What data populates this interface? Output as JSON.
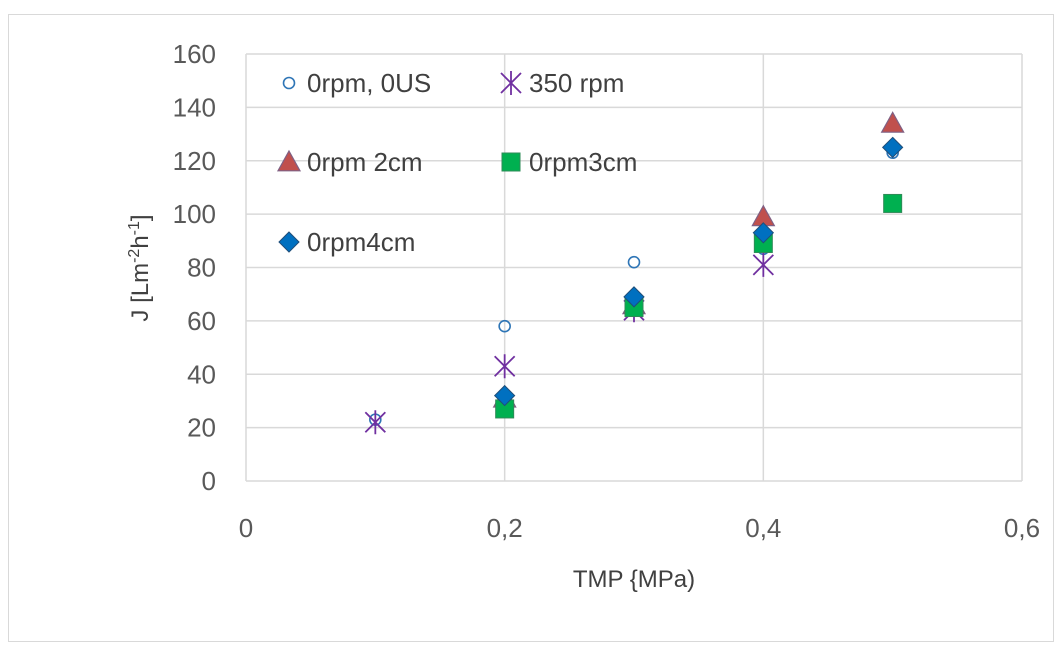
{
  "chart_data": {
    "type": "scatter",
    "xlabel": "TMP {MPa)",
    "ylabel_main": "J [Lm",
    "ylabel_sup1": "-2",
    "ylabel_mid": "h",
    "ylabel_sup2": "-1",
    "ylabel_end": "]",
    "xlim": [
      0,
      0.6
    ],
    "ylim": [
      0,
      160
    ],
    "x_ticks": [
      0,
      0.2,
      0.4,
      0.6
    ],
    "x_tick_labels": [
      "0",
      "0,2",
      "0,4",
      "0,6"
    ],
    "y_ticks": [
      0,
      20,
      40,
      60,
      80,
      100,
      120,
      140,
      160
    ],
    "y_tick_labels": [
      "0",
      "20",
      "40",
      "60",
      "80",
      "100",
      "120",
      "140",
      "160"
    ],
    "grid": true,
    "legend_position": "top-left, inside plot",
    "series": [
      {
        "name": "0rpm, 0US",
        "marker": "circle-open",
        "color": "#2e75b6",
        "points": [
          [
            0.1,
            23
          ],
          [
            0.2,
            58
          ],
          [
            0.3,
            82
          ],
          [
            0.4,
            87
          ],
          [
            0.5,
            123
          ]
        ]
      },
      {
        "name": "350 rpm",
        "marker": "star",
        "color": "#7030a0",
        "points": [
          [
            0.1,
            22
          ],
          [
            0.2,
            43
          ],
          [
            0.3,
            64
          ],
          [
            0.4,
            81
          ]
        ]
      },
      {
        "name": "0rpm 2cm",
        "marker": "triangle",
        "color": "#c0504d",
        "points": [
          [
            0.2,
            31
          ],
          [
            0.3,
            66
          ],
          [
            0.4,
            99
          ],
          [
            0.5,
            134
          ]
        ]
      },
      {
        "name": "0rpm3cm",
        "marker": "square",
        "color": "#00b050",
        "points": [
          [
            0.2,
            27
          ],
          [
            0.3,
            65
          ],
          [
            0.4,
            89
          ],
          [
            0.5,
            104
          ]
        ]
      },
      {
        "name": "0rpm4cm",
        "marker": "diamond",
        "color": "#0070c0",
        "points": [
          [
            0.2,
            32
          ],
          [
            0.3,
            69
          ],
          [
            0.4,
            93
          ],
          [
            0.5,
            125
          ]
        ]
      }
    ]
  }
}
